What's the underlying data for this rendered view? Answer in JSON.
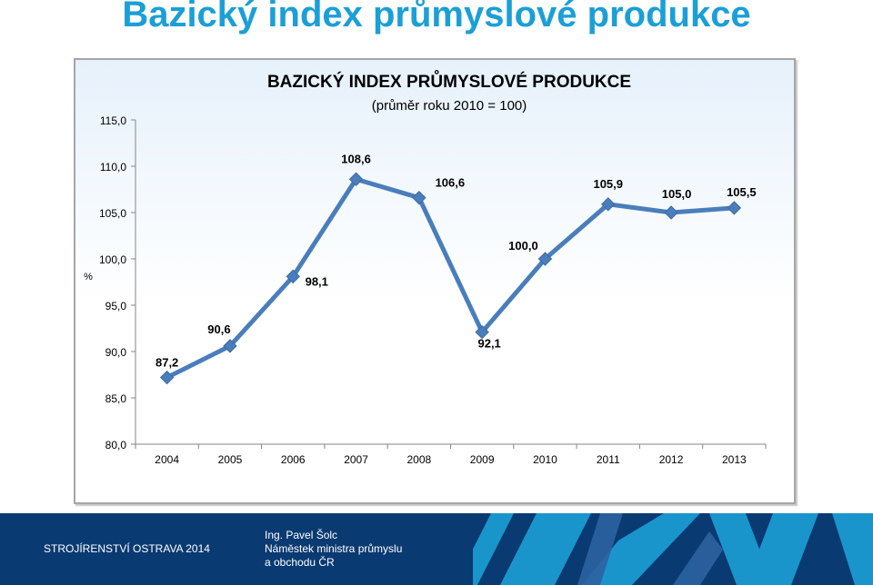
{
  "slide": {
    "title": "Bazický index průmyslové produkce"
  },
  "chart_data": {
    "type": "line",
    "title": "BAZICKÝ INDEX PRŮMYSLOVÉ PRODUKCE",
    "subtitle": "(průměr roku 2010 = 100)",
    "ylabel": "%",
    "ylim": [
      80,
      115
    ],
    "yticks": [
      "80,0",
      "85,0",
      "90,0",
      "95,0",
      "100,0",
      "105,0",
      "110,0",
      "115,0"
    ],
    "categories": [
      "2004",
      "2005",
      "2006",
      "2007",
      "2008",
      "2009",
      "2010",
      "2011",
      "2012",
      "2013"
    ],
    "values": [
      87.2,
      90.6,
      98.1,
      108.6,
      106.6,
      92.1,
      100.0,
      105.9,
      105.0,
      105.5
    ],
    "data_labels": [
      "87,2",
      "90,6",
      "98,1",
      "108,6",
      "106,6",
      "92,1",
      "100,0",
      "105,9",
      "105,0",
      "105,5"
    ],
    "grid": false,
    "color": "#4a7ebb"
  },
  "footer": {
    "event": "STROJÍRENSTVÍ OSTRAVA 2014",
    "author": "Ing. Pavel Šolc",
    "role_line1": "Náměstek ministra průmyslu",
    "role_line2": "a obchodu ČR",
    "background": "#0a3a72",
    "decoration_color": "#1b9fd6"
  }
}
